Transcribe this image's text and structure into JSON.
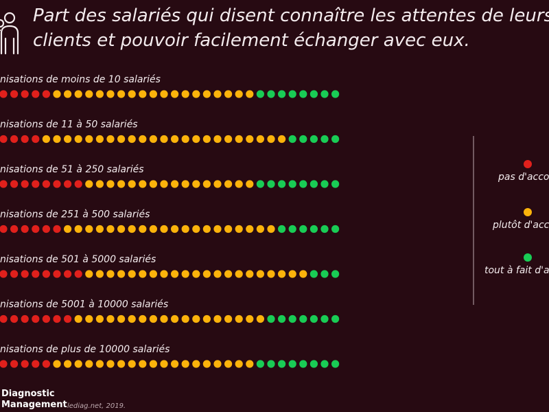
{
  "header": {
    "title_line1": "Part des salariés qui disent connaître les attentes de leurs",
    "title_line2": "clients et pouvoir facilement échanger avec eux."
  },
  "footer": {
    "brand_line1": "Diagnostic",
    "brand_line2": "Management",
    "source": "lediag.net, 2019."
  },
  "colors": {
    "background": "#270a12",
    "disagree": "#e0201c",
    "somewhat": "#fbb30b",
    "agree": "#19cc55",
    "text": "#f4ecee"
  },
  "icons": [
    "people-icon"
  ],
  "chart_data": {
    "type": "bar",
    "subtype": "dot-plot-stacked",
    "unit": "dots per row (32 per row)",
    "categories": [
      "nisations de moins de 10 salariés",
      "nisations de 11 à 50 salariés",
      "nisations de 51 à 250 salariés",
      "nisations de 251 à 500 salariés",
      "nisations de 501 à 5000 salariés",
      "nisations de 5001 à 10000 salariés",
      "nisations de plus de 10000 salariés"
    ],
    "series": [
      {
        "name": "pas d'acco",
        "color": "#e0201c",
        "values": [
          5,
          4,
          8,
          6,
          8,
          7,
          5
        ]
      },
      {
        "name": "plutôt d'acc",
        "color": "#fbb30b",
        "values": [
          19,
          23,
          16,
          20,
          21,
          18,
          19
        ]
      },
      {
        "name": "tout à fait d'a",
        "color": "#19cc55",
        "values": [
          8,
          5,
          8,
          6,
          3,
          7,
          8
        ]
      }
    ],
    "legend_position": "right"
  }
}
